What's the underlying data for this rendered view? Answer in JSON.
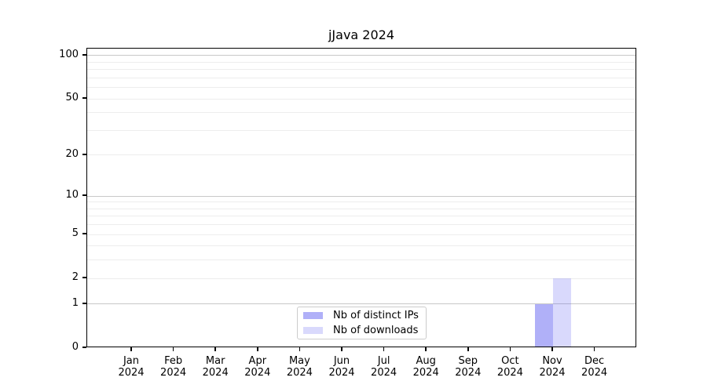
{
  "chart_data": {
    "type": "bar",
    "title": "jJava 2024",
    "categories": [
      "Jan",
      "Feb",
      "Mar",
      "Apr",
      "May",
      "Jun",
      "Jul",
      "Aug",
      "Sep",
      "Oct",
      "Nov",
      "Dec"
    ],
    "x_tick_second_line": "2024",
    "series": [
      {
        "name": "Nb of distinct IPs",
        "color": "rgba(80,80,240,0.45)",
        "values": [
          0,
          0,
          0,
          0,
          0,
          0,
          0,
          0,
          0,
          0,
          1,
          0
        ]
      },
      {
        "name": "Nb of downloads",
        "color": "rgba(80,80,240,0.22)",
        "values": [
          0,
          0,
          0,
          0,
          0,
          0,
          0,
          0,
          0,
          0,
          2,
          0
        ]
      }
    ],
    "y_scale": "log10(1+v)",
    "ylim": [
      0,
      112
    ],
    "y_ticks": [
      0,
      1,
      2,
      5,
      10,
      20,
      50,
      100
    ],
    "y_major_gridlines": [
      1,
      10,
      100
    ],
    "y_minor_gridlines": [
      2,
      3,
      4,
      5,
      6,
      7,
      8,
      9,
      20,
      30,
      40,
      50,
      60,
      70,
      80,
      90
    ],
    "grid_major_color": "#c8c8c8",
    "grid_minor_color": "#ededed",
    "axis_color": "#000000",
    "legend_position": "bottom-center",
    "grid": "on"
  }
}
